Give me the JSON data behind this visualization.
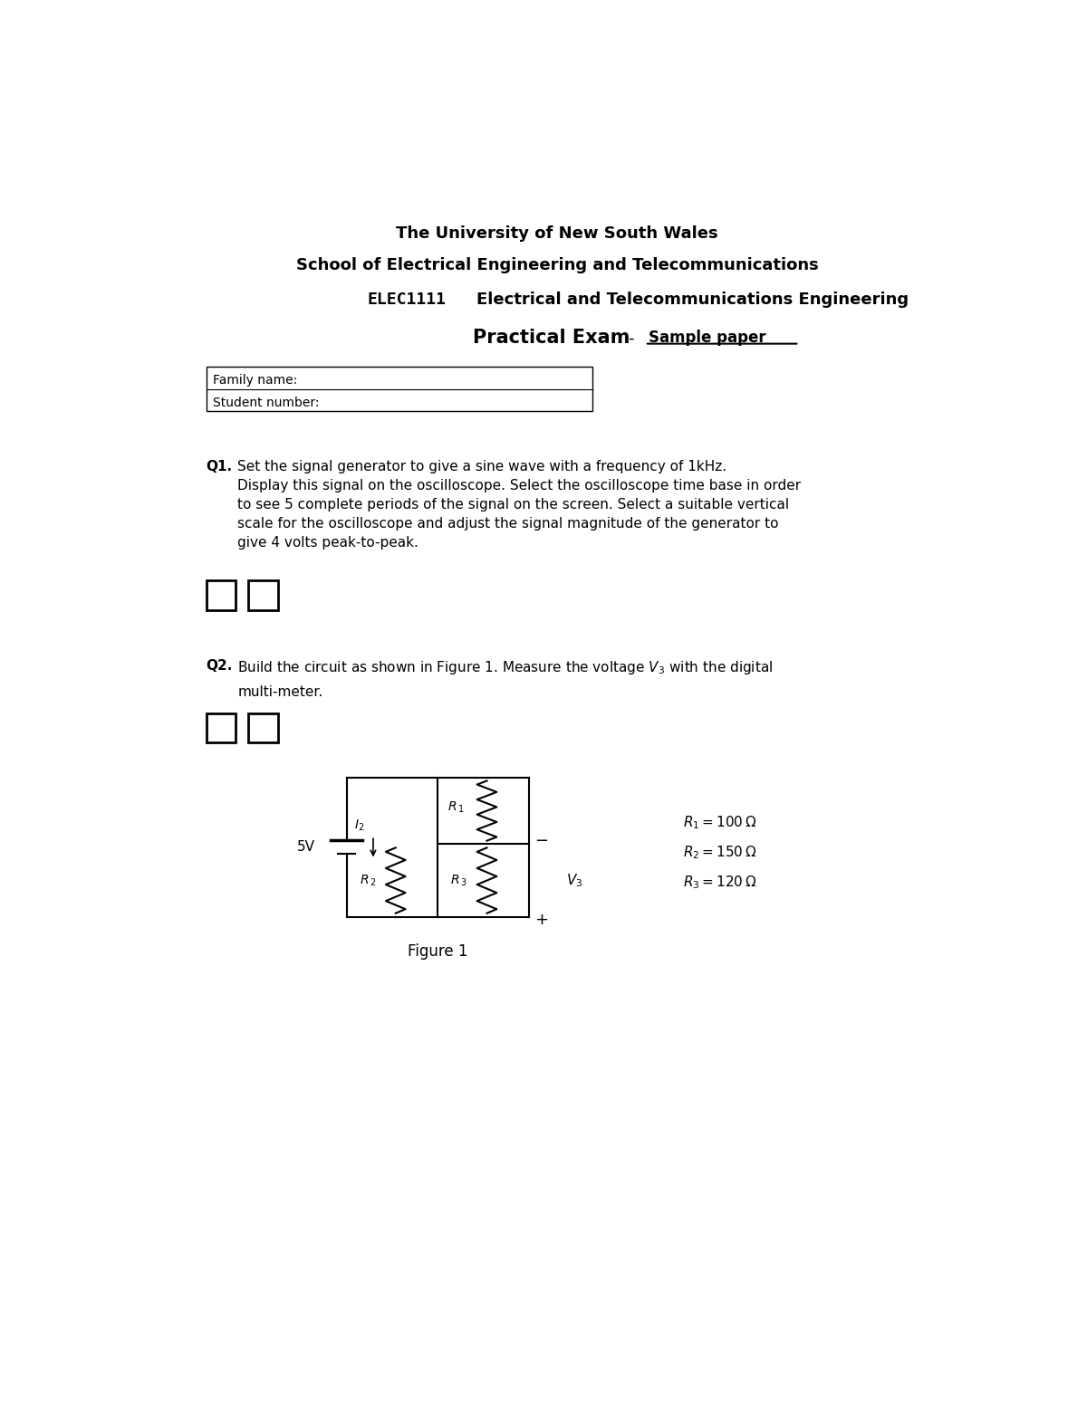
{
  "title1": "The University of New South Wales",
  "title2": "School of Electrical Engineering and Telecommunications",
  "title3_code": "ELEC1111",
  "title3_text": "Electrical and Telecommunications Engineering",
  "title4_main": "Practical Exam",
  "title4_sub": "Sample paper",
  "field1": "Family name:",
  "field2": "Student number:",
  "q1_bold": "Q1.",
  "q1_text": "Set the signal generator to give a sine wave with a frequency of 1kHz.\nDisplay this signal on the oscilloscope. Select the oscilloscope time base in order\nto see 5 complete periods of the signal on the screen. Select a suitable vertical\nscale for the oscilloscope and adjust the signal magnitude of the generator to\ngive 4 volts peak-to-peak.",
  "q2_bold": "Q2.",
  "q2_text": "Build the circuit as shown in Figure 1. Measure the voltage ",
  "q2_end": "with the digital\nmulti-meter.",
  "voltage_label": "5V",
  "fig_caption": "Figure 1",
  "bg_color": "#ffffff",
  "text_color": "#000000"
}
